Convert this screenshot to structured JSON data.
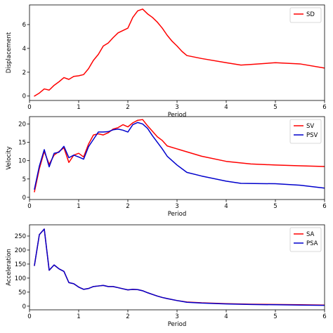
{
  "chart_data": [
    {
      "type": "line",
      "xlabel": "Period",
      "ylabel": "Displacement",
      "xlim": [
        0,
        6
      ],
      "ylim": [
        -0.37,
        7.65
      ],
      "xticks": [
        0,
        1,
        2,
        3,
        4,
        5,
        6
      ],
      "yticks": [
        0,
        2,
        4,
        6
      ],
      "grid": false,
      "legend_position": "upper right",
      "series": [
        {
          "name": "SD",
          "color": "#ff0000",
          "x": [
            0.1,
            0.2,
            0.3,
            0.4,
            0.5,
            0.6,
            0.7,
            0.8,
            0.9,
            1.0,
            1.1,
            1.2,
            1.3,
            1.4,
            1.5,
            1.6,
            1.7,
            1.8,
            1.9,
            2.0,
            2.1,
            2.2,
            2.3,
            2.4,
            2.5,
            2.6,
            2.7,
            2.8,
            2.9,
            3.0,
            3.1,
            3.2,
            3.5,
            4.0,
            4.3,
            4.5,
            5.0,
            5.5,
            6.0
          ],
          "y": [
            0.0,
            0.25,
            0.6,
            0.5,
            0.9,
            1.2,
            1.55,
            1.4,
            1.65,
            1.7,
            1.8,
            2.3,
            3.0,
            3.5,
            4.2,
            4.45,
            4.9,
            5.3,
            5.5,
            5.7,
            6.6,
            7.15,
            7.3,
            6.9,
            6.6,
            6.2,
            5.7,
            5.1,
            4.6,
            4.2,
            3.75,
            3.4,
            3.15,
            2.8,
            2.6,
            2.65,
            2.8,
            2.7,
            2.35
          ]
        }
      ]
    },
    {
      "type": "line",
      "xlabel": "Period",
      "ylabel": "Velocity",
      "xlim": [
        0,
        6
      ],
      "ylim": [
        -0.6,
        22.0
      ],
      "xticks": [
        0,
        1,
        2,
        3,
        4,
        5,
        6
      ],
      "yticks": [
        0,
        5,
        10,
        15,
        20
      ],
      "grid": false,
      "legend_position": "upper right",
      "series": [
        {
          "name": "SV",
          "color": "#ff0000",
          "x": [
            0.1,
            0.2,
            0.3,
            0.4,
            0.5,
            0.6,
            0.7,
            0.8,
            0.9,
            1.0,
            1.1,
            1.2,
            1.3,
            1.4,
            1.5,
            1.6,
            1.7,
            1.8,
            1.9,
            2.0,
            2.1,
            2.2,
            2.3,
            2.4,
            2.5,
            2.6,
            2.7,
            2.8,
            3.0,
            3.5,
            4.0,
            4.5,
            5.0,
            5.5,
            6.0
          ],
          "y": [
            1.5,
            7.8,
            12.5,
            9.0,
            11.5,
            12.5,
            13.5,
            9.5,
            11.5,
            12.0,
            11.0,
            14.5,
            17.0,
            17.3,
            17.0,
            17.6,
            18.6,
            19.0,
            19.8,
            19.2,
            20.3,
            21.0,
            21.2,
            19.5,
            18.0,
            16.5,
            15.5,
            14.0,
            13.2,
            11.2,
            9.8,
            9.1,
            8.8,
            8.6,
            8.4
          ]
        },
        {
          "name": "PSV",
          "color": "#0000cc",
          "x": [
            0.1,
            0.2,
            0.3,
            0.4,
            0.5,
            0.6,
            0.7,
            0.8,
            0.9,
            1.0,
            1.1,
            1.2,
            1.3,
            1.4,
            1.5,
            1.6,
            1.7,
            1.8,
            1.9,
            2.0,
            2.1,
            2.2,
            2.3,
            2.4,
            2.5,
            2.6,
            2.7,
            2.8,
            3.0,
            3.2,
            3.5,
            4.0,
            4.3,
            5.0,
            5.5,
            6.0
          ],
          "y": [
            2.2,
            8.5,
            13.0,
            8.3,
            12.0,
            12.3,
            13.9,
            10.8,
            11.5,
            11.0,
            10.4,
            13.8,
            15.8,
            17.8,
            17.8,
            17.9,
            18.4,
            18.6,
            18.3,
            17.8,
            19.8,
            20.4,
            20.0,
            18.8,
            16.8,
            15.0,
            13.2,
            11.2,
            8.8,
            6.8,
            5.8,
            4.4,
            3.8,
            3.7,
            3.3,
            2.5
          ]
        }
      ]
    },
    {
      "type": "line",
      "xlabel": "Period",
      "ylabel": "Acceleration",
      "xlim": [
        0,
        6
      ],
      "ylim": [
        -13,
        290
      ],
      "xticks": [
        0,
        1,
        2,
        3,
        4,
        5,
        6
      ],
      "yticks": [
        0,
        50,
        100,
        150,
        200,
        250
      ],
      "grid": false,
      "legend_position": "upper right",
      "series": [
        {
          "name": "SA",
          "color": "#ff0000",
          "x": [
            0.1,
            0.2,
            0.3,
            0.4,
            0.5,
            0.6,
            0.7,
            0.8,
            0.9,
            1.0,
            1.1,
            1.2,
            1.3,
            1.4,
            1.5,
            1.6,
            1.7,
            1.8,
            1.9,
            2.0,
            2.1,
            2.2,
            2.3,
            2.4,
            2.5,
            2.6,
            2.7,
            2.8,
            3.0,
            3.2,
            3.5,
            4.0,
            4.5,
            5.0,
            5.5,
            6.0
          ],
          "y": [
            145,
            255,
            275,
            128,
            147,
            133,
            124,
            84,
            80,
            68,
            60,
            63,
            70,
            72,
            74,
            70,
            70,
            66,
            62,
            58,
            60,
            59,
            55,
            48,
            42,
            36,
            31,
            27,
            20,
            15,
            12,
            9,
            7,
            6,
            5,
            4
          ]
        },
        {
          "name": "PSA",
          "color": "#0000cc",
          "x": [
            0.1,
            0.2,
            0.3,
            0.4,
            0.5,
            0.6,
            0.7,
            0.8,
            0.9,
            1.0,
            1.1,
            1.2,
            1.3,
            1.4,
            1.5,
            1.6,
            1.7,
            1.8,
            1.9,
            2.0,
            2.1,
            2.2,
            2.3,
            2.4,
            2.5,
            2.6,
            2.7,
            2.8,
            3.0,
            3.2,
            3.5,
            4.0,
            4.5,
            5.0,
            5.5,
            6.0
          ],
          "y": [
            145,
            255,
            275,
            128,
            147,
            133,
            124,
            84,
            80,
            68,
            60,
            63,
            70,
            72,
            74,
            70,
            70,
            66,
            62,
            58,
            60,
            59,
            55,
            48,
            42,
            36,
            31,
            27,
            20,
            14,
            11,
            8,
            6,
            5,
            4,
            3
          ]
        }
      ]
    }
  ]
}
